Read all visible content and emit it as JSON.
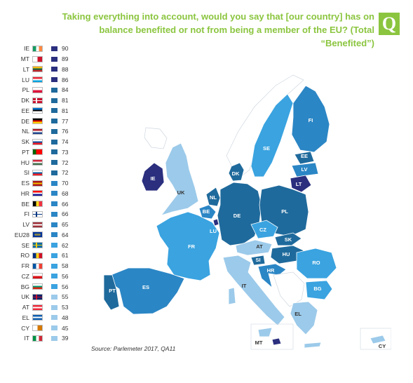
{
  "title": "Taking everything into account, would you say that [our country] has on balance benefited or not from being a member of the EU? (Total “Benefited”)",
  "badge": "Q",
  "source": "Source: Parlemeter 2017, QA11",
  "scale_colors": {
    "very_high": "#2b2f7e",
    "high": "#1f6a9c",
    "mid_high": "#2b86c5",
    "mid": "#3aa3e0",
    "low": "#9ccaea"
  },
  "legend": [
    {
      "code": "IE",
      "value": "90",
      "flag": [
        "#169b62",
        "#ffffff",
        "#ff883e"
      ],
      "level": "very_high"
    },
    {
      "code": "MT",
      "value": "89",
      "flag": [
        "#ffffff",
        "#cf142b"
      ],
      "level": "very_high"
    },
    {
      "code": "LT",
      "value": "88",
      "flag": [
        "#fdb913",
        "#006a44",
        "#c1272d"
      ],
      "level": "very_high",
      "horizontal": true
    },
    {
      "code": "LU",
      "value": "86",
      "flag": [
        "#ed2939",
        "#ffffff",
        "#00a1de"
      ],
      "level": "very_high",
      "horizontal": true
    },
    {
      "code": "PL",
      "value": "84",
      "flag": [
        "#ffffff",
        "#dc143c"
      ],
      "level": "high",
      "horizontal": true
    },
    {
      "code": "DK",
      "value": "81",
      "flag": [
        "#c8102e",
        "#ffffff"
      ],
      "level": "high",
      "cross": true
    },
    {
      "code": "EE",
      "value": "81",
      "flag": [
        "#0072ce",
        "#000000",
        "#ffffff"
      ],
      "level": "high",
      "horizontal": true
    },
    {
      "code": "DE",
      "value": "77",
      "flag": [
        "#000000",
        "#dd0000",
        "#ffce00"
      ],
      "level": "high",
      "horizontal": true
    },
    {
      "code": "NL",
      "value": "76",
      "flag": [
        "#ae1c28",
        "#ffffff",
        "#21468b"
      ],
      "level": "high",
      "horizontal": true
    },
    {
      "code": "SK",
      "value": "74",
      "flag": [
        "#ffffff",
        "#0b4ea2",
        "#ee1c25"
      ],
      "level": "high",
      "horizontal": true
    },
    {
      "code": "PT",
      "value": "73",
      "flag": [
        "#006600",
        "#ff0000",
        "#ff0000"
      ],
      "level": "high"
    },
    {
      "code": "HU",
      "value": "72",
      "flag": [
        "#cd2a3e",
        "#ffffff",
        "#436f4d"
      ],
      "level": "high",
      "horizontal": true
    },
    {
      "code": "SI",
      "value": "72",
      "flag": [
        "#ffffff",
        "#005da4",
        "#ed1c24"
      ],
      "level": "high",
      "horizontal": true
    },
    {
      "code": "ES",
      "value": "70",
      "flag": [
        "#aa151b",
        "#f1bf00",
        "#aa151b"
      ],
      "level": "mid_high",
      "horizontal": true
    },
    {
      "code": "HR",
      "value": "68",
      "flag": [
        "#ff0000",
        "#ffffff",
        "#171796"
      ],
      "level": "mid_high",
      "horizontal": true
    },
    {
      "code": "BE",
      "value": "66",
      "flag": [
        "#000000",
        "#fdda24",
        "#ef3340"
      ],
      "level": "mid_high"
    },
    {
      "code": "FI",
      "value": "66",
      "flag": [
        "#ffffff",
        "#003580"
      ],
      "level": "mid_high",
      "cross": true
    },
    {
      "code": "LV",
      "value": "65",
      "flag": [
        "#9e3039",
        "#ffffff",
        "#9e3039"
      ],
      "level": "mid_high",
      "horizontal": true
    },
    {
      "code": "EU28",
      "value": "64",
      "flag": [
        "#003399",
        "#ffcc00"
      ],
      "level": "mid_high",
      "eu": true
    },
    {
      "code": "SE",
      "value": "62",
      "flag": [
        "#006aa7",
        "#fecc00"
      ],
      "level": "mid",
      "cross": true
    },
    {
      "code": "RO",
      "value": "61",
      "flag": [
        "#002b7f",
        "#fcd116",
        "#ce1126"
      ],
      "level": "mid"
    },
    {
      "code": "FR",
      "value": "58",
      "flag": [
        "#0055a4",
        "#ffffff",
        "#ef4135"
      ],
      "level": "mid"
    },
    {
      "code": "CZ",
      "value": "56",
      "flag": [
        "#ffffff",
        "#d7141a"
      ],
      "level": "mid",
      "horizontal": true
    },
    {
      "code": "BG",
      "value": "56",
      "flag": [
        "#ffffff",
        "#00966e",
        "#d62612"
      ],
      "level": "mid",
      "horizontal": true
    },
    {
      "code": "UK",
      "value": "55",
      "flag": [
        "#012169",
        "#c8102e"
      ],
      "level": "low",
      "cross": true
    },
    {
      "code": "AT",
      "value": "53",
      "flag": [
        "#ed2939",
        "#ffffff",
        "#ed2939"
      ],
      "level": "low",
      "horizontal": true
    },
    {
      "code": "EL",
      "value": "48",
      "flag": [
        "#0d5eaf",
        "#ffffff",
        "#0d5eaf"
      ],
      "level": "low",
      "horizontal": true
    },
    {
      "code": "CY",
      "value": "45",
      "flag": [
        "#ffffff",
        "#d57800"
      ],
      "level": "low"
    },
    {
      "code": "IT",
      "value": "39",
      "flag": [
        "#009246",
        "#ffffff",
        "#ce2b37"
      ],
      "level": "low"
    }
  ],
  "map_labels": [
    "IE",
    "UK",
    "NL",
    "BE",
    "LU",
    "FR",
    "DK",
    "DE",
    "SE",
    "FI",
    "EE",
    "LV",
    "LT",
    "PL",
    "CZ",
    "SK",
    "AT",
    "HU",
    "SI",
    "HR",
    "RO",
    "BG",
    "PT",
    "ES",
    "IT",
    "MT",
    "EL",
    "CY"
  ]
}
